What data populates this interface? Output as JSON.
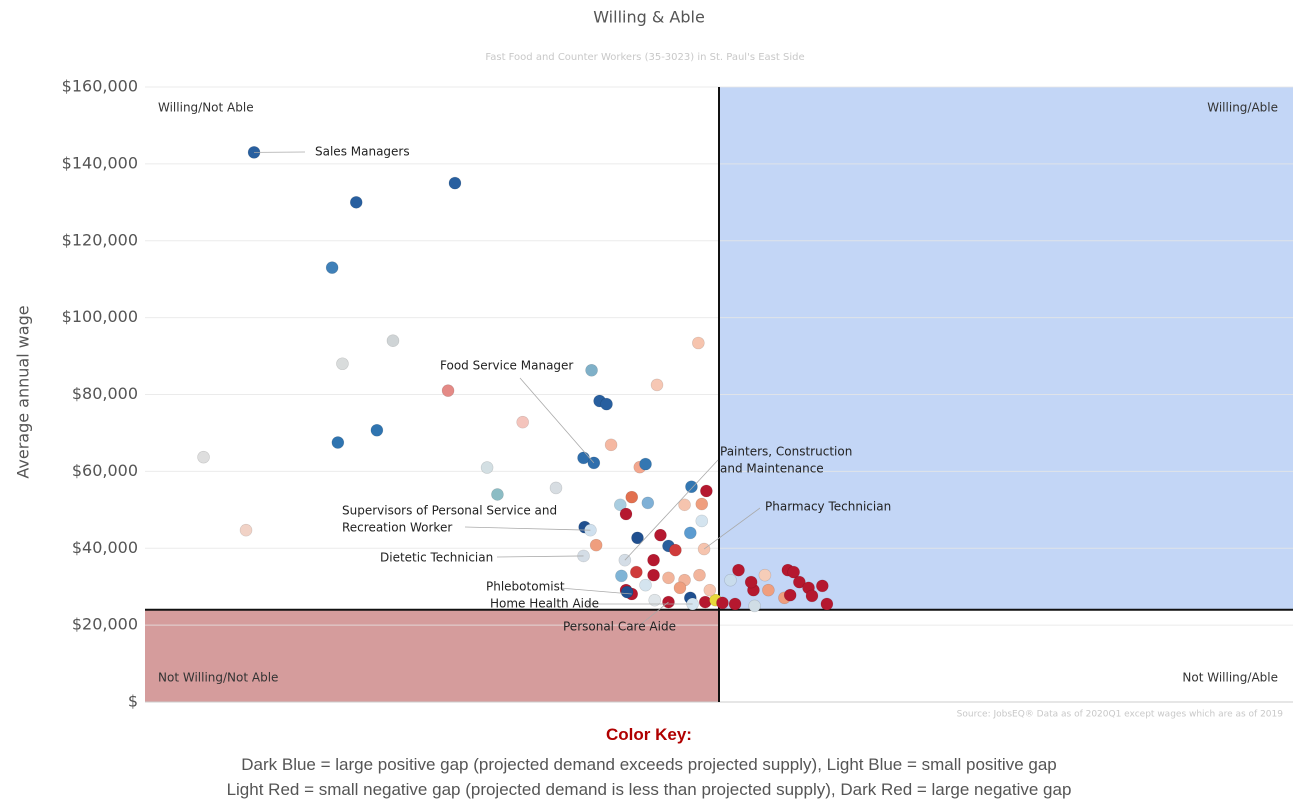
{
  "chart_data": {
    "type": "scatter",
    "title": "Willing & Able",
    "subtitle": "Fast Food and Counter Workers (35-3023) in St. Paul's East Side",
    "ylabel": "Average annual wage",
    "source": "Source: JobsEQ® Data as of 2020Q1 except wages which are as of 2019",
    "xlim": [
      0,
      100
    ],
    "ylim": [
      0,
      160000
    ],
    "yticks": [
      {
        "value": 0,
        "label": "$"
      },
      {
        "value": 20000,
        "label": "$20,000"
      },
      {
        "value": 40000,
        "label": "$40,000"
      },
      {
        "value": 60000,
        "label": "$60,000"
      },
      {
        "value": 80000,
        "label": "$80,000"
      },
      {
        "value": 100000,
        "label": "$100,000"
      },
      {
        "value": 120000,
        "label": "$120,000"
      },
      {
        "value": 140000,
        "label": "$140,000"
      },
      {
        "value": 160000,
        "label": "$160,000"
      }
    ],
    "grid": true,
    "x_threshold": 50,
    "y_threshold": 24000,
    "quadrants": {
      "top_left": "Willing/Not Able",
      "top_right": "Willing/Able",
      "bottom_left": "Not Willing/Not Able",
      "bottom_right": "Not Willing/Able"
    },
    "quadrant_colors": {
      "top_right": "#c3d6f6",
      "bottom_left": "#d59c9c"
    },
    "x": [
      9.5,
      18.4,
      27,
      16.3,
      17.2,
      21.6,
      26.4,
      16.8,
      20.2,
      5.1,
      8.8,
      29.8,
      30.7,
      32.9,
      35.8,
      38.9,
      39.6,
      40.2,
      44.6,
      48.2,
      40.6,
      38.2,
      39.1,
      43.1,
      43.6,
      47.6,
      48.9,
      38.3,
      38.8,
      39.3,
      38.2,
      41.4,
      42.4,
      41.9,
      43.8,
      47,
      48.5,
      42.9,
      44.9,
      45.6,
      46.2,
      47.5,
      48.5,
      48.7,
      41.8,
      44.3,
      41.5,
      42.8,
      44.3,
      45.6,
      47,
      48.3,
      41.9,
      42.4,
      42,
      44.4,
      45.6,
      47.5,
      47.7,
      48.8,
      49.7,
      50.3,
      51.4,
      51,
      51.7,
      53,
      52.8,
      53.1,
      54,
      54.3,
      55.7,
      56,
      56.5,
      56.2,
      57,
      57.8,
      58.1,
      59,
      59.4,
      46.6,
      43.6,
      49.2
    ],
    "values": [
      143000,
      130000,
      135000,
      113000,
      88000,
      94000,
      81000,
      67500,
      70700,
      63700,
      44700,
      61000,
      54000,
      72800,
      55700,
      86300,
      78300,
      77500,
      82500,
      93400,
      66900,
      63500,
      62200,
      61100,
      61900,
      56000,
      54900,
      45500,
      44700,
      40800,
      38000,
      51300,
      53300,
      48900,
      51800,
      51300,
      51500,
      42700,
      43400,
      40600,
      39500,
      44000,
      47100,
      39800,
      36900,
      36900,
      32800,
      33800,
      33000,
      32300,
      31700,
      33000,
      29100,
      28100,
      28600,
      26500,
      26000,
      27100,
      25500,
      26000,
      26500,
      25800,
      25500,
      31700,
      34300,
      29100,
      31200,
      25000,
      33000,
      29100,
      27100,
      34300,
      33800,
      27800,
      31200,
      29700,
      27600,
      30200,
      25500,
      29700,
      30400,
      29100
    ],
    "colors": [
      "#285f9f",
      "#285f9f",
      "#285f9f",
      "#3f80b8",
      "#d9dcdc",
      "#cfd4d6",
      "#e48a86",
      "#2f74b0",
      "#2f74b0",
      "#dedede",
      "#f1d2c6",
      "#d3dfe3",
      "#8cbcc4",
      "#f4c4bc",
      "#d7dde2",
      "#7fb0c8",
      "#285f9f",
      "#285f9f",
      "#f6c7b4",
      "#f6c4ae",
      "#f5b8a2",
      "#2f6eac",
      "#2f6eac",
      "#f3a78e",
      "#3377b2",
      "#3377b2",
      "#b5182f",
      "#1f4f8f",
      "#cfe0ee",
      "#ef9e7e",
      "#d4dde6",
      "#a9cde0",
      "#e2704f",
      "#b5182f",
      "#7fb0d6",
      "#f6c4ae",
      "#ef9e7e",
      "#1f4f8f",
      "#b5182f",
      "#2a5e9c",
      "#cf3b3b",
      "#5b9bd0",
      "#d4e4ef",
      "#f6c4ae",
      "#d4dde6",
      "#b5182f",
      "#7fb4d6",
      "#cf3b3b",
      "#b5182f",
      "#f2b49b",
      "#f2b49b",
      "#f2b49b",
      "#b5182f",
      "#b5182f",
      "#1f4f8f",
      "#e0e6ea",
      "#b5182f",
      "#1f4f8f",
      "#d4e4ef",
      "#b5182f",
      "#e8d83a",
      "#b5182f",
      "#b5182f",
      "#c9dcec",
      "#b5182f",
      "#b5182f",
      "#b5182f",
      "#d0dde5",
      "#f6cdb8",
      "#ef9e7e",
      "#ef9e7e",
      "#b5182f",
      "#b5182f",
      "#b5182f",
      "#b5182f",
      "#b5182f",
      "#b5182f",
      "#b5182f",
      "#b5182f",
      "#ef9e7e",
      "#d4e4ef",
      "#f6c4ae"
    ],
    "annotations": [
      {
        "lines": [
          "Sales Managers"
        ],
        "point": 0
      },
      {
        "lines": [
          "Food Service Manager"
        ],
        "point": 22
      },
      {
        "lines": [
          "Painters, Construction",
          "and Maintenance"
        ],
        "point": 44
      },
      {
        "lines": [
          "Pharmacy Technician"
        ],
        "point": 43
      },
      {
        "lines": [
          "Supervisors of Personal Service and",
          "Recreation Worker"
        ],
        "point": 28
      },
      {
        "lines": [
          "Dietetic Technician"
        ],
        "point": 30
      },
      {
        "lines": [
          "Phlebotomist"
        ],
        "point": 53
      },
      {
        "lines": [
          "Home Health Aide"
        ],
        "point": 58
      },
      {
        "lines": [
          "Personal Care Aide"
        ],
        "point": 56
      }
    ],
    "color_key": {
      "title": "Color Key:",
      "lines": [
        "Dark Blue = large positive gap (projected demand exceeds projected supply), Light Blue = small positive gap",
        "Light Red = small negative gap (projected demand is less than projected supply), Dark Red = large negative gap"
      ]
    }
  }
}
